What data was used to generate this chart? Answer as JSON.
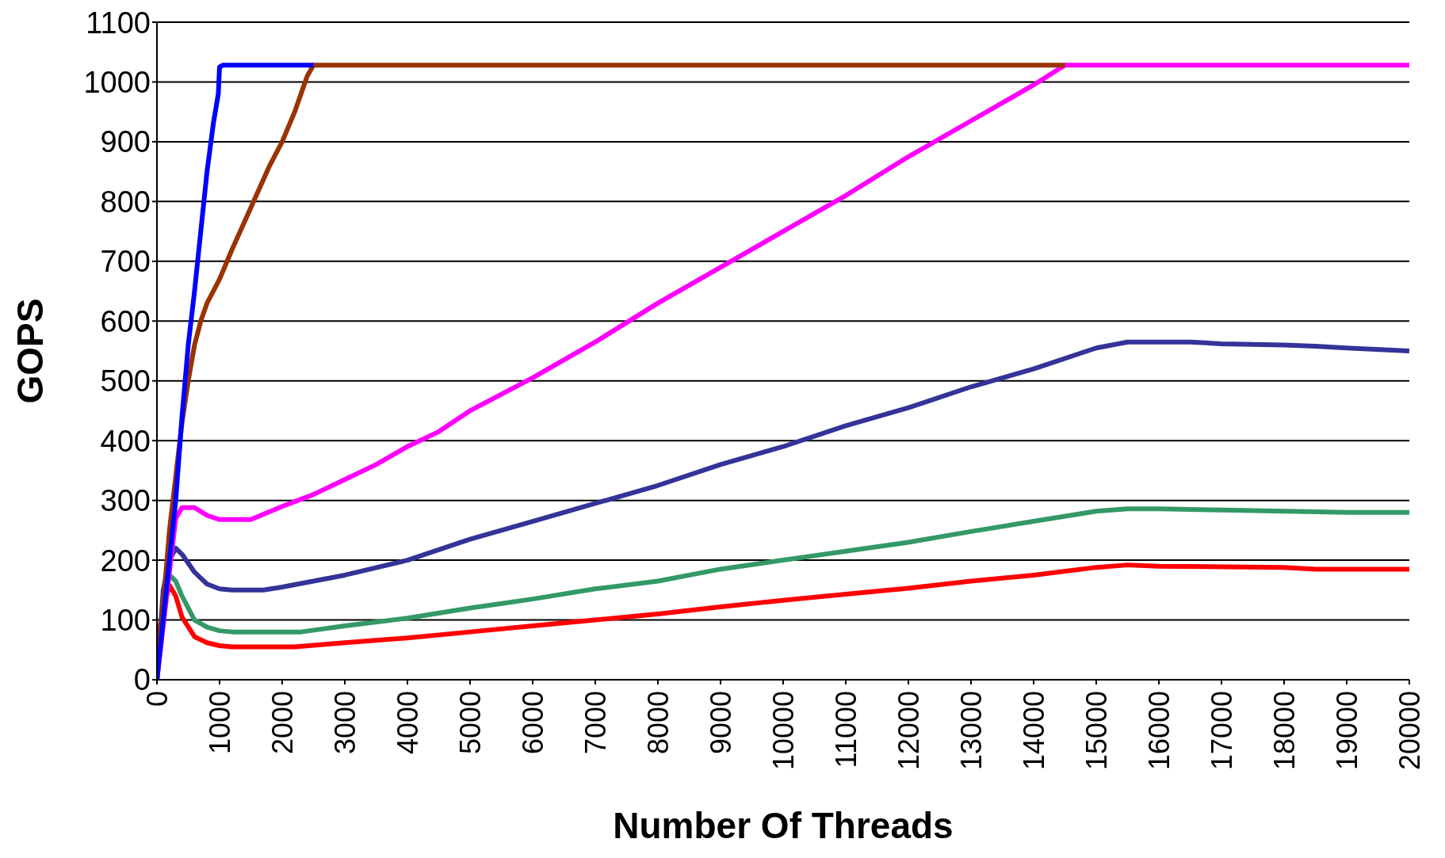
{
  "chart_data": {
    "type": "line",
    "xlabel": "Number Of Threads",
    "ylabel": "GOPS",
    "xlim": [
      0,
      20000
    ],
    "xticks": [
      0,
      1000,
      2000,
      3000,
      4000,
      5000,
      6000,
      7000,
      8000,
      9000,
      10000,
      11000,
      12000,
      13000,
      14000,
      15000,
      16000,
      17000,
      18000,
      19000,
      20000
    ],
    "ylim": [
      0,
      1100
    ],
    "yticks": [
      0,
      100,
      200,
      300,
      400,
      500,
      600,
      700,
      800,
      900,
      1000,
      1100
    ],
    "grid": "y",
    "legend": false,
    "marker": "none",
    "line_style": "solid",
    "series": [
      {
        "color": "#ff0000",
        "x": [
          0,
          50,
          100,
          200,
          300,
          400,
          600,
          800,
          1000,
          1200,
          2200,
          3000,
          4000,
          5000,
          6000,
          7000,
          8000,
          9000,
          10000,
          11000,
          12000,
          13000,
          14000,
          15000,
          15500,
          16000,
          18000,
          18500,
          20000
        ],
        "values": [
          0,
          90,
          120,
          158,
          140,
          105,
          72,
          62,
          57,
          55,
          55,
          62,
          70,
          80,
          90,
          100,
          110,
          122,
          133,
          143,
          153,
          165,
          175,
          188,
          192,
          190,
          188,
          185,
          185
        ]
      },
      {
        "color": "#339966",
        "x": [
          0,
          100,
          200,
          300,
          400,
          600,
          800,
          1000,
          1200,
          2300,
          3000,
          4000,
          5000,
          6000,
          7000,
          8000,
          9000,
          10000,
          11000,
          12000,
          13000,
          14000,
          15000,
          15500,
          16000,
          17000,
          18000,
          19000,
          20000
        ],
        "values": [
          0,
          130,
          175,
          165,
          140,
          100,
          88,
          82,
          80,
          80,
          90,
          103,
          120,
          135,
          152,
          165,
          185,
          200,
          215,
          230,
          248,
          265,
          282,
          286,
          286,
          284,
          282,
          280,
          280
        ]
      },
      {
        "color": "#333399",
        "x": [
          0,
          100,
          200,
          300,
          400,
          600,
          800,
          1000,
          1200,
          1700,
          2000,
          3000,
          4000,
          5000,
          6000,
          7000,
          8000,
          9000,
          10000,
          11000,
          12000,
          13000,
          14000,
          15000,
          15500,
          16500,
          17000,
          18000,
          18500,
          19000,
          20000
        ],
        "values": [
          0,
          150,
          200,
          220,
          210,
          180,
          160,
          152,
          150,
          150,
          155,
          175,
          200,
          235,
          265,
          295,
          325,
          360,
          390,
          425,
          455,
          490,
          520,
          555,
          565,
          565,
          562,
          560,
          558,
          555,
          550
        ]
      },
      {
        "color": "#ff00ff",
        "x": [
          0,
          300,
          400,
          600,
          800,
          1000,
          1500,
          2000,
          2500,
          3000,
          3500,
          4000,
          4500,
          5000,
          6000,
          7000,
          8000,
          9000,
          10000,
          11000,
          12000,
          13000,
          14000,
          14500,
          20000
        ],
        "values": [
          0,
          270,
          288,
          288,
          275,
          268,
          268,
          290,
          310,
          335,
          360,
          390,
          415,
          450,
          505,
          565,
          630,
          690,
          750,
          810,
          875,
          935,
          995,
          1028,
          1028
        ]
      },
      {
        "color": "#993300",
        "x": [
          0,
          200,
          300,
          400,
          500,
          600,
          700,
          800,
          1000,
          1200,
          1500,
          1800,
          2000,
          2200,
          2400,
          2500,
          14500
        ],
        "values": [
          0,
          250,
          340,
          430,
          500,
          560,
          600,
          630,
          670,
          720,
          790,
          860,
          900,
          950,
          1010,
          1028,
          1028
        ]
      },
      {
        "color": "#0000ff",
        "x": [
          0,
          100,
          200,
          300,
          400,
          500,
          600,
          700,
          800,
          900,
          980,
          1000,
          1050,
          2500
        ],
        "values": [
          0,
          100,
          200,
          300,
          440,
          560,
          650,
          750,
          850,
          930,
          980,
          1025,
          1028,
          1028
        ]
      }
    ]
  }
}
